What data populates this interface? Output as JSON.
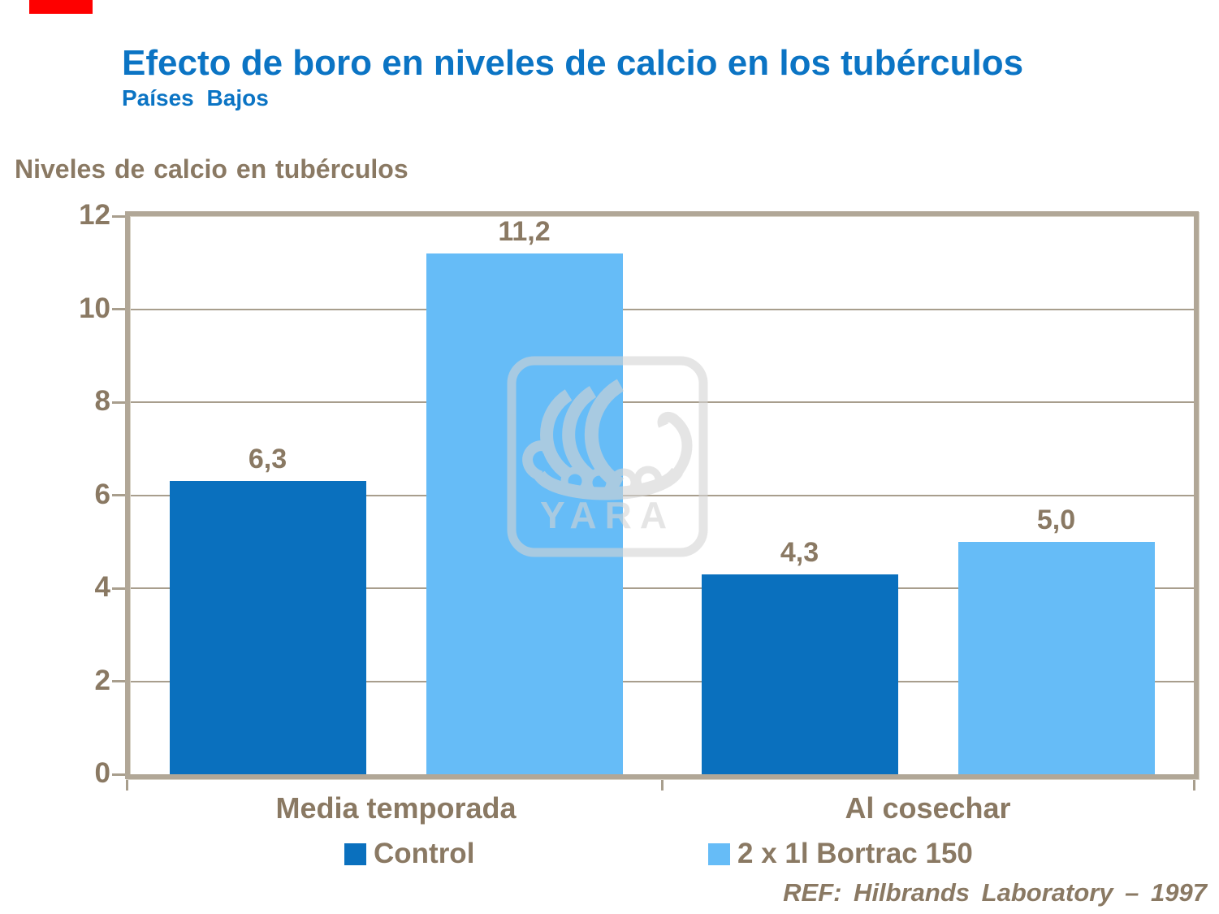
{
  "page": {
    "background": "#ffffff",
    "red_accent_color": "#fe0000"
  },
  "header": {
    "title": "Efecto de boro en niveles de calcio en los tubérculos",
    "subtitle": "Países Bajos",
    "title_color": "#0b74c4"
  },
  "chart_data": {
    "type": "bar",
    "title": "Efecto de boro en niveles de calcio en los tubérculos",
    "subtitle": "Países Bajos",
    "ylabel": "Niveles de calcio en tubérculos",
    "xlabel": "",
    "ylim": [
      0,
      12
    ],
    "yticks": [
      0,
      2,
      4,
      6,
      8,
      10,
      12
    ],
    "grid": true,
    "categories": [
      "Media temporada",
      "Al cosechar"
    ],
    "series": [
      {
        "name": "Control",
        "color": "#0a70be",
        "values": [
          6.3,
          4.3
        ],
        "value_labels": [
          "6,3",
          "4,3"
        ]
      },
      {
        "name": "2 x 1l Bortrac 150",
        "color": "#66bcf7",
        "values": [
          11.2,
          5.0
        ],
        "value_labels": [
          "11,2",
          "5,0"
        ]
      }
    ],
    "legend_position": "bottom",
    "text_color": "#8a7963",
    "axis_color": "#aba092",
    "watermark": "YARA",
    "footnote": "REF: Hilbrands Laboratory – 1997"
  }
}
